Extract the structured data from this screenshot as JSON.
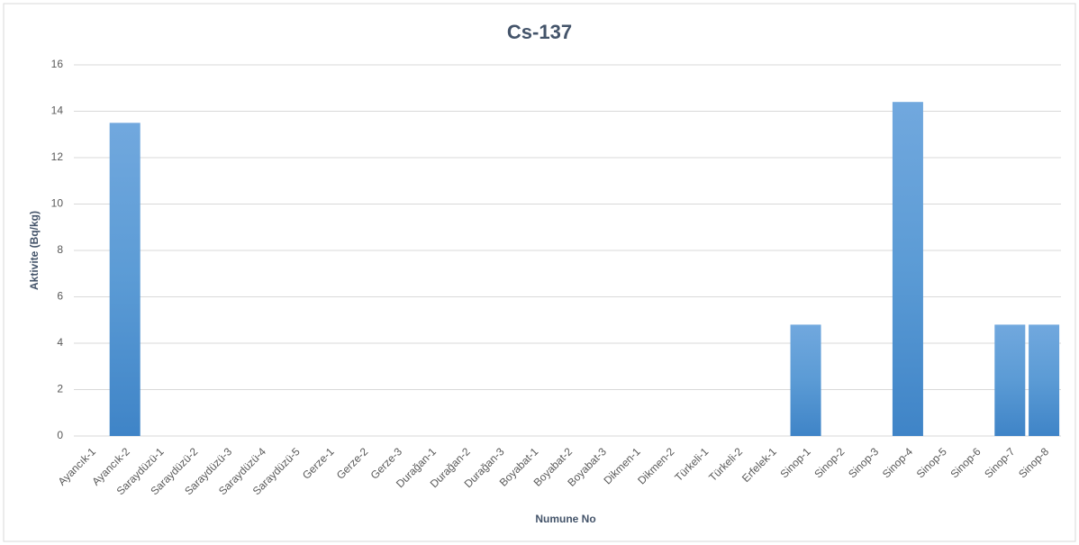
{
  "chart_data": {
    "type": "bar",
    "title": "Cs-137",
    "x_label": "Numune No",
    "y_label": "Aktivite (Bq/kg)",
    "categories": [
      "Ayancık-1",
      "Ayancık-2",
      "Saraydüzü-1",
      "Saraydüzü-2",
      "Saraydüzü-3",
      "Saraydüzü-4",
      "Saraydüzü-5",
      "Gerze-1",
      "Gerze-2",
      "Gerze-3",
      "Durağan-1",
      "Durağan-2",
      "Durağan-3",
      "Boyabat-1",
      "Boyabat-2",
      "Boyabat-3",
      "Dikmen-1",
      "Dikmen-2",
      "Türkeli-1",
      "Türkeli-2",
      "Erfelek-1",
      "Sinop-1",
      "Sinop-2",
      "Sinop-3",
      "Sinop-4",
      "Sinop-5",
      "Sinop-6",
      "Sinop-7",
      "Sinop-8"
    ],
    "values": [
      0,
      13.5,
      0,
      0,
      0,
      0,
      0,
      0,
      0,
      0,
      0,
      0,
      0,
      0,
      0,
      0,
      0,
      0,
      0,
      0,
      0,
      4.8,
      0,
      0,
      14.4,
      0,
      0,
      4.8,
      4.8
    ],
    "color": "#5b9bd5",
    "ylim": [
      0,
      16
    ],
    "yticks": [
      0,
      2,
      4,
      6,
      8,
      10,
      12,
      14,
      16
    ],
    "grid": true
  }
}
